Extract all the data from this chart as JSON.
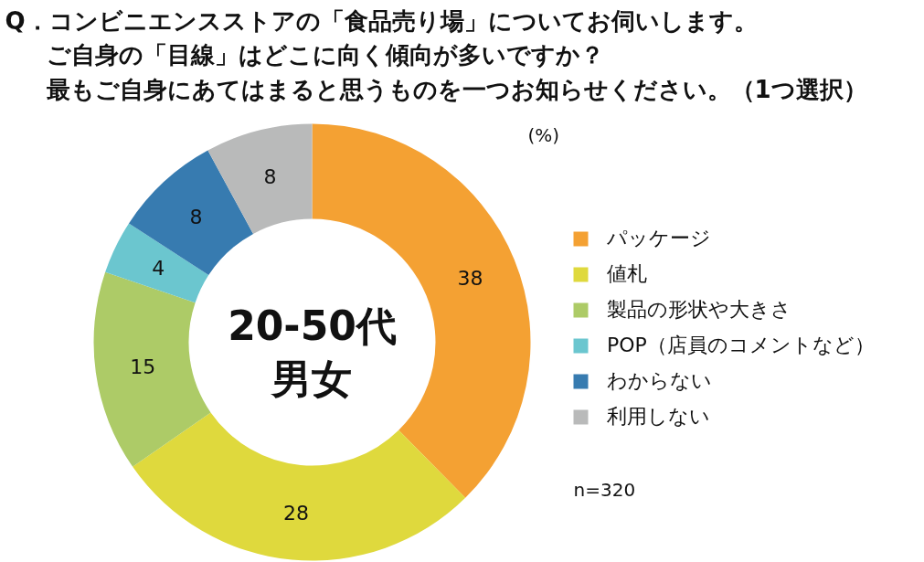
{
  "chart_data": {
    "type": "donut",
    "title": "Q．コンビニエンスストアの「食品売り場」についてお伺いします。ご自身の「目線」はどこに向く傾向が多いですか？最もご自身にあてはまると思うものを一つお知らせください。（1つ選択）",
    "categories": [
      "パッケージ",
      "値札",
      "製品の形状や大きさ",
      "POP（店員のコメントなど）",
      "わからない",
      "利用しない"
    ],
    "values": [
      38,
      28,
      15,
      4,
      8,
      8
    ],
    "colors": [
      "#f4a133",
      "#dfd93d",
      "#adcb67",
      "#6bc6cf",
      "#377bb0",
      "#b9baba"
    ],
    "data_labels": true,
    "legend": "right",
    "annotations": [
      "20-50代男女",
      "(%)",
      "n=320"
    ]
  }
}
